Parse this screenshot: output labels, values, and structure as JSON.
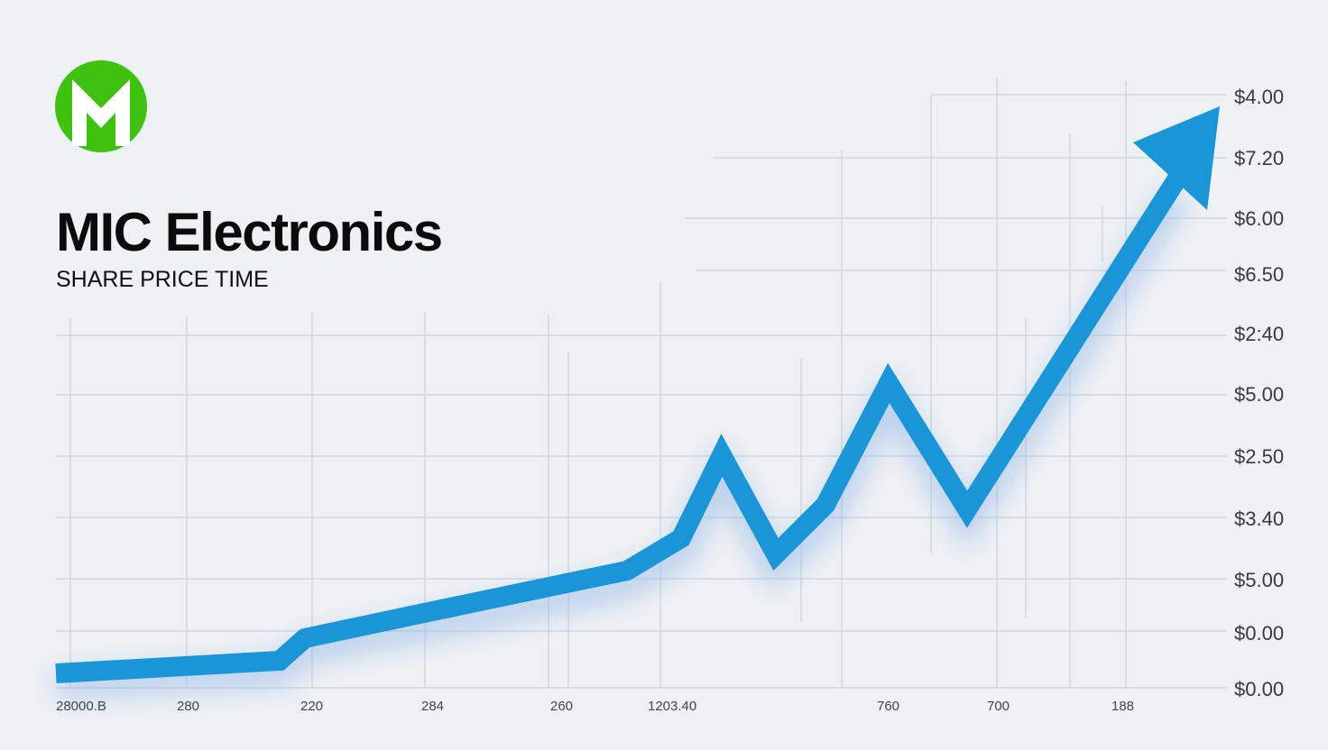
{
  "brand": {
    "name": "MIC Electronics",
    "subtitle": "SHARE PRICE TIME"
  },
  "y_axis_labels": [
    "$4.00",
    "$7.20",
    "$6.00",
    "$6.50",
    "$2:40",
    "$5.00",
    "$2.50",
    "$3.40",
    "$5.00",
    "$0.00",
    "$0.00"
  ],
  "x_axis_labels": [
    "28000.B",
    "280",
    "220",
    "284",
    "260",
    "1203.40",
    "760",
    "700",
    "188"
  ]
}
